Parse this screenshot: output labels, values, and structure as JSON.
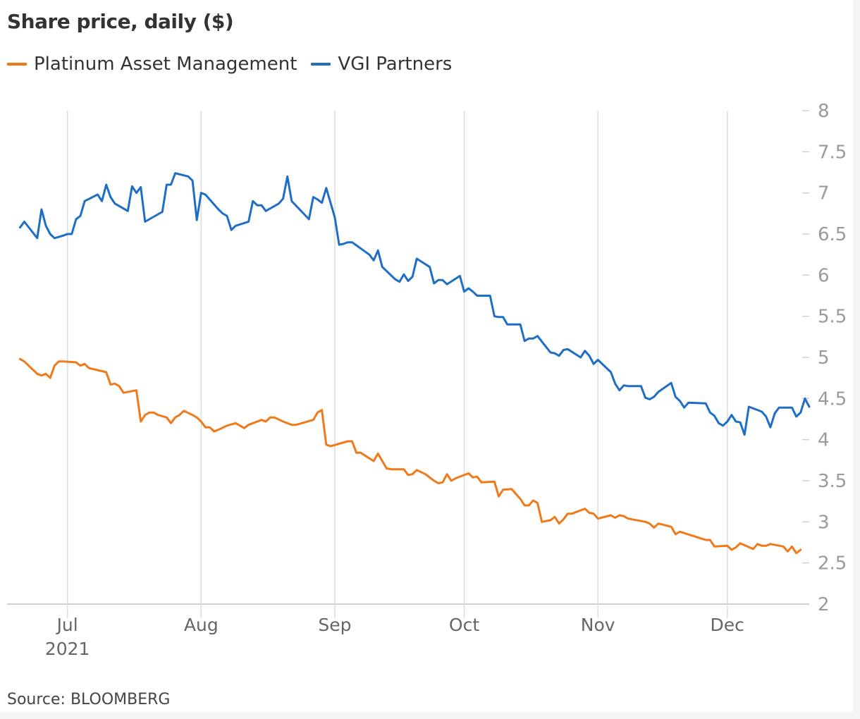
{
  "chart_data": {
    "type": "line",
    "title": "Share price, daily ($)",
    "source": "Source: BLOOMBERG",
    "ylim": [
      2,
      8
    ],
    "yticks": [
      "8",
      "7.5",
      "7",
      "6.5",
      "6",
      "5.5",
      "5",
      "4.5",
      "4",
      "3.5",
      "3",
      "2.5",
      "2"
    ],
    "ytick_values": [
      8,
      7.5,
      7,
      6.5,
      6,
      5.5,
      5,
      4.5,
      4,
      3.5,
      3,
      2.5,
      2
    ],
    "x_range": [
      "2021-06-17",
      "2021-12-20"
    ],
    "xticks": [
      {
        "date": "2021-07-01",
        "label": "Jul",
        "sublabel": "2021"
      },
      {
        "date": "2021-08-01",
        "label": "Aug",
        "sublabel": ""
      },
      {
        "date": "2021-09-01",
        "label": "Sep",
        "sublabel": ""
      },
      {
        "date": "2021-10-01",
        "label": "Oct",
        "sublabel": ""
      },
      {
        "date": "2021-11-01",
        "label": "Nov",
        "sublabel": ""
      },
      {
        "date": "2021-12-01",
        "label": "Dec",
        "sublabel": ""
      }
    ],
    "grid": "vertical",
    "legend": "top-left",
    "series": [
      {
        "name": "Platinum Asset Management",
        "color": "#f07a1a",
        "points": [
          [
            "2021-06-20",
            4.98
          ],
          [
            "2021-06-21",
            4.95
          ],
          [
            "2021-06-22",
            4.9
          ],
          [
            "2021-06-23",
            4.85
          ],
          [
            "2021-06-24",
            4.8
          ],
          [
            "2021-06-25",
            4.78
          ],
          [
            "2021-06-26",
            4.8
          ],
          [
            "2021-06-27",
            4.75
          ],
          [
            "2021-06-28",
            4.9
          ],
          [
            "2021-06-29",
            4.95
          ],
          [
            "2021-06-30",
            4.95
          ],
          [
            "2021-07-03",
            4.94
          ],
          [
            "2021-07-04",
            4.9
          ],
          [
            "2021-07-05",
            4.92
          ],
          [
            "2021-07-06",
            4.87
          ],
          [
            "2021-07-10",
            4.82
          ],
          [
            "2021-07-11",
            4.67
          ],
          [
            "2021-07-12",
            4.68
          ],
          [
            "2021-07-13",
            4.65
          ],
          [
            "2021-07-14",
            4.57
          ],
          [
            "2021-07-17",
            4.6
          ],
          [
            "2021-07-18",
            4.22
          ],
          [
            "2021-07-19",
            4.3
          ],
          [
            "2021-07-20",
            4.33
          ],
          [
            "2021-07-21",
            4.33
          ],
          [
            "2021-07-22",
            4.3
          ],
          [
            "2021-07-24",
            4.27
          ],
          [
            "2021-07-25",
            4.2
          ],
          [
            "2021-07-26",
            4.27
          ],
          [
            "2021-07-27",
            4.3
          ],
          [
            "2021-07-28",
            4.35
          ],
          [
            "2021-07-30",
            4.3
          ],
          [
            "2021-07-31",
            4.27
          ],
          [
            "2021-08-01",
            4.22
          ],
          [
            "2021-08-02",
            4.15
          ],
          [
            "2021-08-03",
            4.15
          ],
          [
            "2021-08-04",
            4.1
          ],
          [
            "2021-08-05",
            4.12
          ],
          [
            "2021-08-07",
            4.17
          ],
          [
            "2021-08-09",
            4.2
          ],
          [
            "2021-08-11",
            4.14
          ],
          [
            "2021-08-12",
            4.18
          ],
          [
            "2021-08-15",
            4.24
          ],
          [
            "2021-08-16",
            4.22
          ],
          [
            "2021-08-17",
            4.27
          ],
          [
            "2021-08-18",
            4.27
          ],
          [
            "2021-08-20",
            4.22
          ],
          [
            "2021-08-22",
            4.18
          ],
          [
            "2021-08-23",
            4.18
          ],
          [
            "2021-08-27",
            4.24
          ],
          [
            "2021-08-28",
            4.33
          ],
          [
            "2021-08-29",
            4.36
          ],
          [
            "2021-08-30",
            3.94
          ],
          [
            "2021-08-31",
            3.92
          ],
          [
            "2021-09-04",
            3.98
          ],
          [
            "2021-09-05",
            3.98
          ],
          [
            "2021-09-06",
            3.84
          ],
          [
            "2021-09-07",
            3.84
          ],
          [
            "2021-09-10",
            3.74
          ],
          [
            "2021-09-11",
            3.83
          ],
          [
            "2021-09-13",
            3.65
          ],
          [
            "2021-09-14",
            3.64
          ],
          [
            "2021-09-17",
            3.64
          ],
          [
            "2021-09-18",
            3.57
          ],
          [
            "2021-09-19",
            3.58
          ],
          [
            "2021-09-20",
            3.63
          ],
          [
            "2021-09-22",
            3.58
          ],
          [
            "2021-09-24",
            3.5
          ],
          [
            "2021-09-25",
            3.47
          ],
          [
            "2021-09-26",
            3.48
          ],
          [
            "2021-09-27",
            3.58
          ],
          [
            "2021-09-28",
            3.5
          ],
          [
            "2021-09-29",
            3.53
          ],
          [
            "2021-10-02",
            3.59
          ],
          [
            "2021-10-03",
            3.54
          ],
          [
            "2021-10-04",
            3.55
          ],
          [
            "2021-10-05",
            3.48
          ],
          [
            "2021-10-08",
            3.49
          ],
          [
            "2021-10-09",
            3.31
          ],
          [
            "2021-10-10",
            3.39
          ],
          [
            "2021-10-12",
            3.4
          ],
          [
            "2021-10-14",
            3.28
          ],
          [
            "2021-10-15",
            3.2
          ],
          [
            "2021-10-16",
            3.2
          ],
          [
            "2021-10-17",
            3.26
          ],
          [
            "2021-10-18",
            3.23
          ],
          [
            "2021-10-19",
            3
          ],
          [
            "2021-10-21",
            3.02
          ],
          [
            "2021-10-22",
            3.06
          ],
          [
            "2021-10-23",
            2.98
          ],
          [
            "2021-10-24",
            3.03
          ],
          [
            "2021-10-25",
            3.1
          ],
          [
            "2021-10-26",
            3.1
          ],
          [
            "2021-10-28",
            3.14
          ],
          [
            "2021-10-29",
            3.16
          ],
          [
            "2021-10-30",
            3.11
          ],
          [
            "2021-10-31",
            3.1
          ],
          [
            "2021-11-01",
            3.04
          ],
          [
            "2021-11-04",
            3.08
          ],
          [
            "2021-11-05",
            3.05
          ],
          [
            "2021-11-06",
            3.08
          ],
          [
            "2021-11-07",
            3.07
          ],
          [
            "2021-11-08",
            3.04
          ],
          [
            "2021-11-12",
            3
          ],
          [
            "2021-11-13",
            2.98
          ],
          [
            "2021-11-14",
            2.93
          ],
          [
            "2021-11-15",
            2.98
          ],
          [
            "2021-11-18",
            2.94
          ],
          [
            "2021-11-19",
            2.85
          ],
          [
            "2021-11-20",
            2.88
          ],
          [
            "2021-11-26",
            2.78
          ],
          [
            "2021-11-27",
            2.78
          ],
          [
            "2021-11-28",
            2.7
          ],
          [
            "2021-12-01",
            2.71
          ],
          [
            "2021-12-02",
            2.66
          ],
          [
            "2021-12-03",
            2.69
          ],
          [
            "2021-12-04",
            2.74
          ],
          [
            "2021-12-07",
            2.67
          ],
          [
            "2021-12-08",
            2.73
          ],
          [
            "2021-12-09",
            2.71
          ],
          [
            "2021-12-10",
            2.71
          ],
          [
            "2021-12-11",
            2.73
          ],
          [
            "2021-12-14",
            2.7
          ],
          [
            "2021-12-15",
            2.64
          ],
          [
            "2021-12-16",
            2.7
          ],
          [
            "2021-12-17",
            2.62
          ],
          [
            "2021-12-18",
            2.66
          ]
        ]
      },
      {
        "name": "VGI Partners",
        "color": "#1e6ec6",
        "points": [
          [
            "2021-06-20",
            6.58
          ],
          [
            "2021-06-21",
            6.65
          ],
          [
            "2021-06-24",
            6.45
          ],
          [
            "2021-06-25",
            6.8
          ],
          [
            "2021-06-26",
            6.6
          ],
          [
            "2021-06-27",
            6.5
          ],
          [
            "2021-06-28",
            6.45
          ],
          [
            "2021-06-30",
            6.48
          ],
          [
            "2021-07-01",
            6.5
          ],
          [
            "2021-07-02",
            6.5
          ],
          [
            "2021-07-03",
            6.68
          ],
          [
            "2021-07-04",
            6.72
          ],
          [
            "2021-07-05",
            6.9
          ],
          [
            "2021-07-08",
            6.98
          ],
          [
            "2021-07-09",
            6.9
          ],
          [
            "2021-07-10",
            7.1
          ],
          [
            "2021-07-11",
            6.95
          ],
          [
            "2021-07-12",
            6.87
          ],
          [
            "2021-07-15",
            6.78
          ],
          [
            "2021-07-16",
            7.08
          ],
          [
            "2021-07-17",
            7
          ],
          [
            "2021-07-18",
            7.07
          ],
          [
            "2021-07-19",
            6.65
          ],
          [
            "2021-07-23",
            6.77
          ],
          [
            "2021-07-24",
            7.1
          ],
          [
            "2021-07-25",
            7.1
          ],
          [
            "2021-07-26",
            7.24
          ],
          [
            "2021-07-29",
            7.2
          ],
          [
            "2021-07-30",
            7.15
          ],
          [
            "2021-07-31",
            6.67
          ],
          [
            "2021-08-01",
            7
          ],
          [
            "2021-08-02",
            6.98
          ],
          [
            "2021-08-05",
            6.8
          ],
          [
            "2021-08-06",
            6.75
          ],
          [
            "2021-08-07",
            6.72
          ],
          [
            "2021-08-08",
            6.55
          ],
          [
            "2021-08-09",
            6.6
          ],
          [
            "2021-08-12",
            6.65
          ],
          [
            "2021-08-13",
            6.9
          ],
          [
            "2021-08-14",
            6.85
          ],
          [
            "2021-08-15",
            6.85
          ],
          [
            "2021-08-16",
            6.78
          ],
          [
            "2021-08-19",
            6.87
          ],
          [
            "2021-08-20",
            6.93
          ],
          [
            "2021-08-21",
            7.2
          ],
          [
            "2021-08-22",
            6.9
          ],
          [
            "2021-08-26",
            6.68
          ],
          [
            "2021-08-27",
            6.95
          ],
          [
            "2021-08-28",
            6.92
          ],
          [
            "2021-08-29",
            6.88
          ],
          [
            "2021-08-30",
            7.06
          ],
          [
            "2021-09-01",
            6.7
          ],
          [
            "2021-09-02",
            6.37
          ],
          [
            "2021-09-03",
            6.38
          ],
          [
            "2021-09-04",
            6.4
          ],
          [
            "2021-09-05",
            6.4
          ],
          [
            "2021-09-09",
            6.25
          ],
          [
            "2021-09-10",
            6.18
          ],
          [
            "2021-09-11",
            6.3
          ],
          [
            "2021-09-12",
            6.1
          ],
          [
            "2021-09-15",
            5.95
          ],
          [
            "2021-09-16",
            5.92
          ],
          [
            "2021-09-17",
            6.01
          ],
          [
            "2021-09-18",
            5.93
          ],
          [
            "2021-09-19",
            5.98
          ],
          [
            "2021-09-20",
            6.2
          ],
          [
            "2021-09-23",
            6.1
          ],
          [
            "2021-09-24",
            5.9
          ],
          [
            "2021-09-25",
            5.94
          ],
          [
            "2021-09-26",
            5.94
          ],
          [
            "2021-09-27",
            5.89
          ],
          [
            "2021-09-30",
            5.99
          ],
          [
            "2021-10-01",
            5.8
          ],
          [
            "2021-10-02",
            5.84
          ],
          [
            "2021-10-03",
            5.8
          ],
          [
            "2021-10-04",
            5.75
          ],
          [
            "2021-10-07",
            5.75
          ],
          [
            "2021-10-08",
            5.5
          ],
          [
            "2021-10-09",
            5.49
          ],
          [
            "2021-10-10",
            5.49
          ],
          [
            "2021-10-11",
            5.4
          ],
          [
            "2021-10-14",
            5.4
          ],
          [
            "2021-10-15",
            5.2
          ],
          [
            "2021-10-16",
            5.23
          ],
          [
            "2021-10-17",
            5.23
          ],
          [
            "2021-10-18",
            5.26
          ],
          [
            "2021-10-21",
            5.06
          ],
          [
            "2021-10-22",
            5.05
          ],
          [
            "2021-10-23",
            5.02
          ],
          [
            "2021-10-24",
            5.09
          ],
          [
            "2021-10-25",
            5.1
          ],
          [
            "2021-10-28",
            5
          ],
          [
            "2021-10-29",
            5.08
          ],
          [
            "2021-10-30",
            5.02
          ],
          [
            "2021-10-31",
            4.92
          ],
          [
            "2021-11-01",
            4.97
          ],
          [
            "2021-11-04",
            4.82
          ],
          [
            "2021-11-05",
            4.68
          ],
          [
            "2021-11-06",
            4.6
          ],
          [
            "2021-11-07",
            4.66
          ],
          [
            "2021-11-08",
            4.65
          ],
          [
            "2021-11-11",
            4.65
          ],
          [
            "2021-11-12",
            4.51
          ],
          [
            "2021-11-13",
            4.49
          ],
          [
            "2021-11-14",
            4.52
          ],
          [
            "2021-11-15",
            4.58
          ],
          [
            "2021-11-18",
            4.69
          ],
          [
            "2021-11-19",
            4.52
          ],
          [
            "2021-11-20",
            4.47
          ],
          [
            "2021-11-21",
            4.39
          ],
          [
            "2021-11-22",
            4.45
          ],
          [
            "2021-11-26",
            4.44
          ],
          [
            "2021-11-27",
            4.33
          ],
          [
            "2021-11-28",
            4.29
          ],
          [
            "2021-11-29",
            4.2
          ],
          [
            "2021-11-30",
            4.17
          ],
          [
            "2021-12-01",
            4.22
          ],
          [
            "2021-12-02",
            4.3
          ],
          [
            "2021-12-03",
            4.22
          ],
          [
            "2021-12-04",
            4.21
          ],
          [
            "2021-12-05",
            4.06
          ],
          [
            "2021-12-06",
            4.4
          ],
          [
            "2021-12-09",
            4.34
          ],
          [
            "2021-12-10",
            4.28
          ],
          [
            "2021-12-11",
            4.15
          ],
          [
            "2021-12-12",
            4.32
          ],
          [
            "2021-12-13",
            4.39
          ],
          [
            "2021-12-16",
            4.39
          ],
          [
            "2021-12-17",
            4.28
          ],
          [
            "2021-12-18",
            4.33
          ],
          [
            "2021-12-19",
            4.5
          ],
          [
            "2021-12-20",
            4.4
          ]
        ]
      }
    ]
  }
}
